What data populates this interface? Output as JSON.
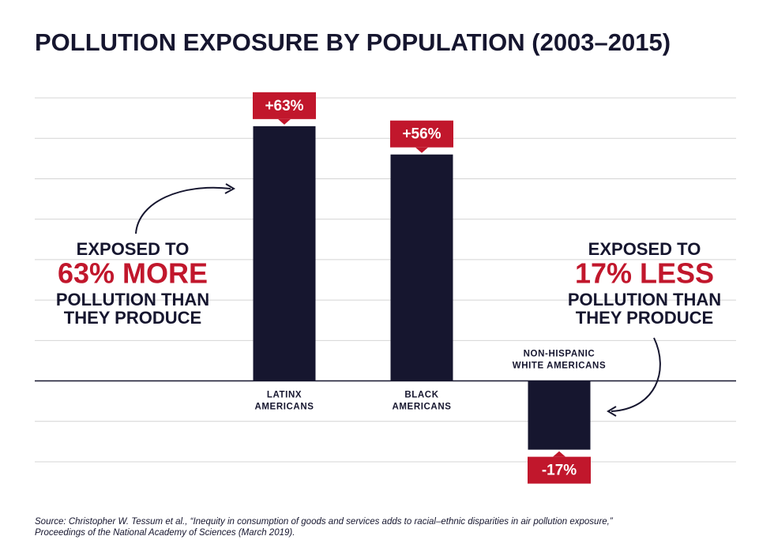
{
  "chart_data": {
    "type": "bar",
    "title": "POLLUTION EXPOSURE BY POPULATION (2003–2015)",
    "categories": [
      "LATINX AMERICANS",
      "BLACK AMERICANS",
      "NON-HISPANIC WHITE AMERICANS"
    ],
    "values": [
      63,
      56,
      -17
    ],
    "value_labels": [
      "+63%",
      "+56%",
      "-17%"
    ],
    "color": "#16162f",
    "label_color": "#c1172c",
    "ylim": [
      -20,
      70
    ],
    "yticks": [
      -20,
      -10,
      0,
      10,
      20,
      30,
      40,
      50,
      60,
      70
    ],
    "grid": true,
    "annotations": [
      {
        "lines": [
          "EXPOSED TO",
          "63% MORE",
          "POLLUTION THAN",
          "THEY PRODUCE"
        ]
      },
      {
        "lines": [
          "EXPOSED TO",
          "17% LESS",
          "POLLUTION THAN",
          "THEY PRODUCE"
        ]
      }
    ],
    "source": [
      "Source: Christopher W. Tessum et al., “Inequity in consumption of goods and services adds to racial–ethnic disparities in air pollution exposure,”",
      "Proceedings of the National Academy of Sciences (March 2019)."
    ]
  }
}
